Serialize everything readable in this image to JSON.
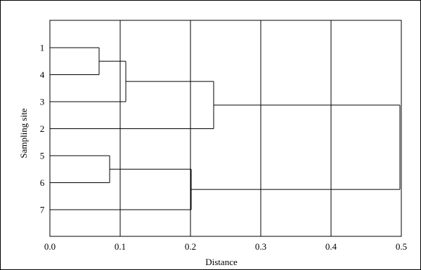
{
  "chart_data": {
    "type": "dendrogram",
    "orientation": "horizontal",
    "xlabel": "Distance",
    "ylabel": "Sampling site",
    "xlim": [
      0.0,
      0.5
    ],
    "x_ticks": [
      "0.0",
      "0.1",
      "0.2",
      "0.3",
      "0.4",
      "0.5"
    ],
    "x_tick_values": [
      0.0,
      0.1,
      0.2,
      0.3,
      0.4,
      0.5
    ],
    "grid": true,
    "leaves": [
      "1",
      "4",
      "3",
      "2",
      "5",
      "6",
      "7"
    ],
    "merges": [
      {
        "a": "1",
        "b": "4",
        "distance": 0.07
      },
      {
        "a": "1-4",
        "b": "3",
        "distance": 0.108
      },
      {
        "a": "1-4-3",
        "b": "2",
        "distance": 0.233
      },
      {
        "a": "5",
        "b": "6",
        "distance": 0.085
      },
      {
        "a": "5-6",
        "b": "7",
        "distance": 0.201
      },
      {
        "a": "1-4-3-2",
        "b": "5-6-7",
        "distance": 0.498
      }
    ]
  }
}
